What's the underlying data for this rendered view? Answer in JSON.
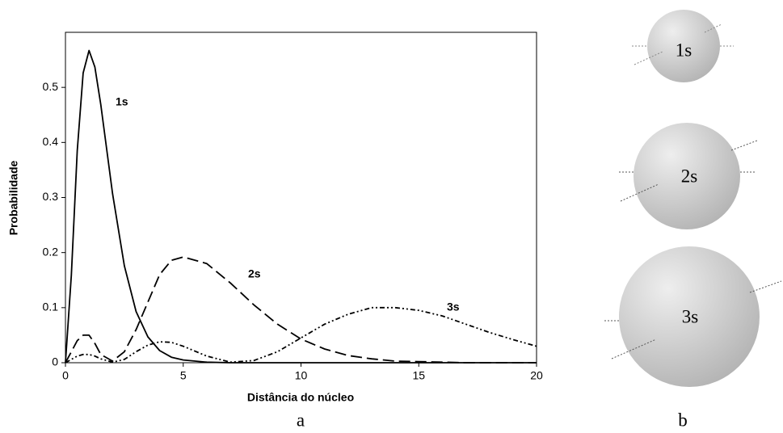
{
  "chart_data": {
    "type": "line",
    "x_label": "Distância do núcleo",
    "y_label": "Probabilidade",
    "panel_labels": [
      "a",
      "b"
    ],
    "x": [
      0,
      0.25,
      0.5,
      0.75,
      1,
      1.25,
      1.5,
      2,
      2.5,
      3,
      3.5,
      4,
      4.5,
      5,
      6,
      7,
      8,
      9,
      10,
      11,
      12,
      13,
      14,
      15,
      16,
      17,
      18,
      19,
      20
    ],
    "series": [
      {
        "name": "1s",
        "color": "#000000",
        "style": "solid",
        "values": [
          0,
          0.159,
          0.385,
          0.526,
          0.567,
          0.537,
          0.469,
          0.307,
          0.176,
          0.093,
          0.047,
          0.022,
          0.01,
          0.005,
          0.001,
          0,
          0,
          0,
          0,
          0,
          0,
          0,
          0,
          0,
          0,
          0,
          0,
          0,
          0
        ]
      },
      {
        "name": "2s",
        "color": "#000000",
        "style": "dashed",
        "values": [
          0,
          0.02,
          0.04,
          0.05,
          0.05,
          0.035,
          0.015,
          0.003,
          0.02,
          0.06,
          0.11,
          0.16,
          0.186,
          0.192,
          0.18,
          0.145,
          0.105,
          0.07,
          0.043,
          0.025,
          0.013,
          0.007,
          0.003,
          0.002,
          0.001,
          0,
          0,
          0,
          0
        ]
      },
      {
        "name": "3s",
        "color": "#000000",
        "style": "dashdot",
        "values": [
          0,
          0.006,
          0.012,
          0.015,
          0.015,
          0.012,
          0.007,
          0.001,
          0.006,
          0.02,
          0.032,
          0.038,
          0.037,
          0.03,
          0.012,
          0.001,
          0.004,
          0.02,
          0.045,
          0.07,
          0.088,
          0.1,
          0.1,
          0.095,
          0.085,
          0.07,
          0.055,
          0.042,
          0.03
        ]
      }
    ],
    "xlim": [
      0,
      20
    ],
    "ylim": [
      0,
      0.6
    ],
    "xticks": [
      0,
      5,
      10,
      15,
      20
    ],
    "yticks": [
      0,
      0.1,
      0.2,
      0.3,
      0.4,
      0.5
    ]
  }
}
